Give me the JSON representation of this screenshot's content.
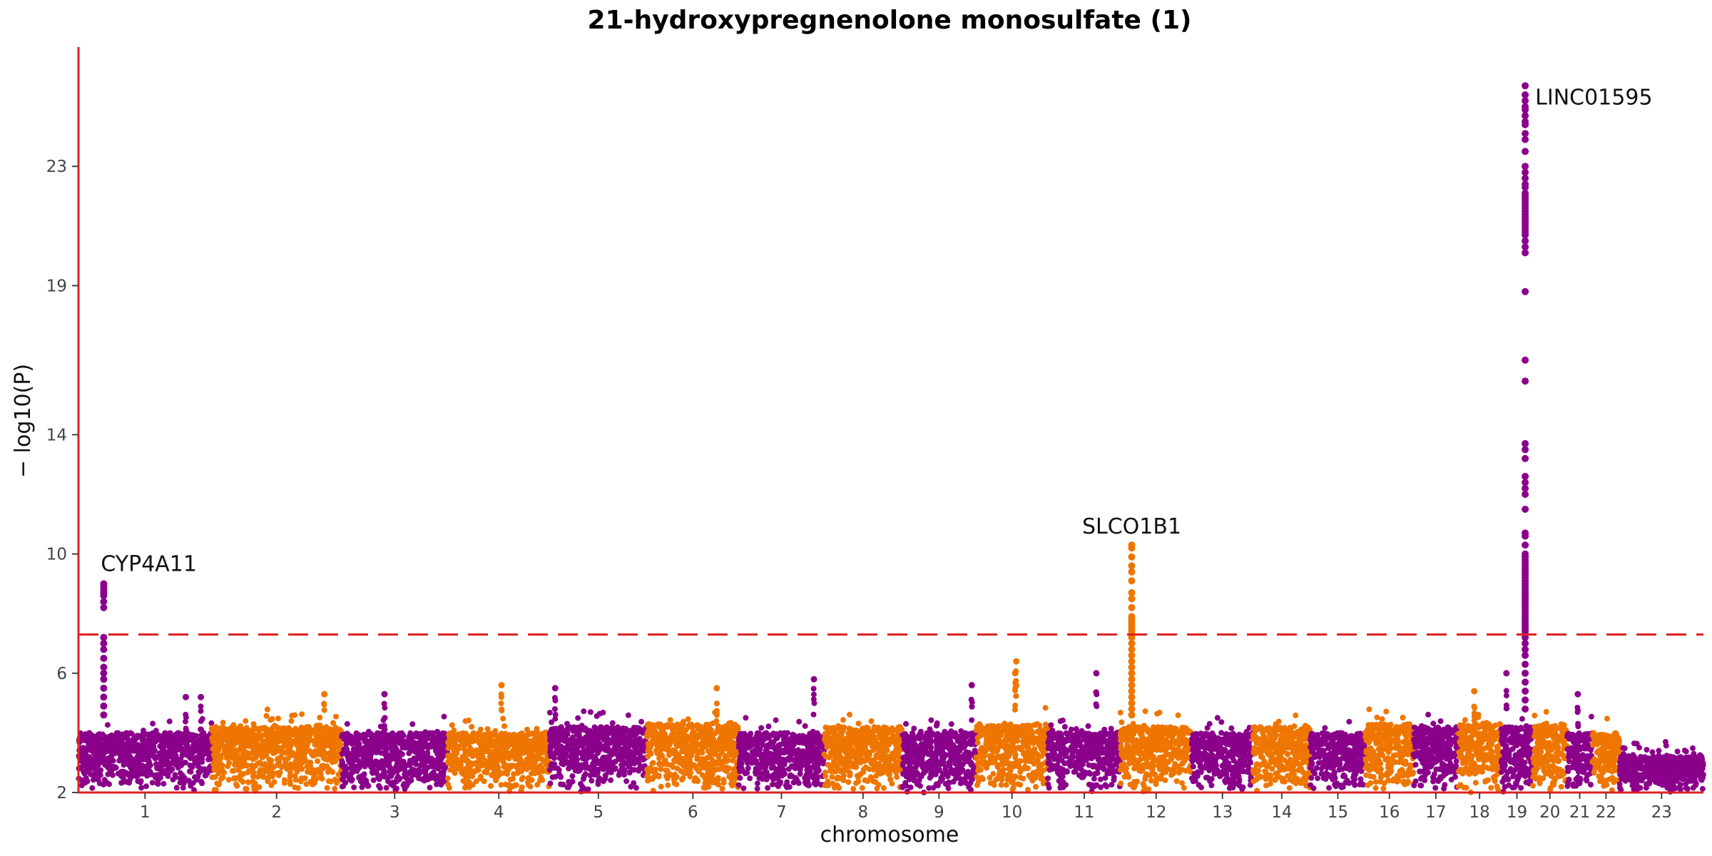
{
  "chart_data": {
    "type": "scatter",
    "title": "21-hydroxypregnenolone monosulfate (1)",
    "xlabel": "chromosome",
    "ylabel": "− log10(P)",
    "ylim": [
      2,
      27
    ],
    "yticks": [
      2,
      6,
      10,
      14,
      19,
      23
    ],
    "significance_threshold": 7.3,
    "grid": false,
    "legend": "none",
    "colors": {
      "odd": "#8B008B",
      "even": "#EE7600",
      "axis": "#DD2222",
      "threshold": "#DD2222"
    },
    "chromosomes": [
      {
        "label": "1",
        "length": 248,
        "baseline": 4.0
      },
      {
        "label": "2",
        "length": 242,
        "baseline": 4.2
      },
      {
        "label": "3",
        "length": 198,
        "baseline": 4.0
      },
      {
        "label": "4",
        "length": 190,
        "baseline": 4.0
      },
      {
        "label": "5",
        "length": 181,
        "baseline": 4.2
      },
      {
        "label": "6",
        "length": 171,
        "baseline": 4.3
      },
      {
        "label": "7",
        "length": 159,
        "baseline": 4.0
      },
      {
        "label": "8",
        "length": 145,
        "baseline": 4.2
      },
      {
        "label": "9",
        "length": 138,
        "baseline": 4.0
      },
      {
        "label": "10",
        "length": 134,
        "baseline": 4.3
      },
      {
        "label": "11",
        "length": 135,
        "baseline": 4.0
      },
      {
        "label": "12",
        "length": 133,
        "baseline": 4.2
      },
      {
        "label": "13",
        "length": 114,
        "baseline": 4.0
      },
      {
        "label": "14",
        "length": 107,
        "baseline": 4.2
      },
      {
        "label": "15",
        "length": 102,
        "baseline": 4.0
      },
      {
        "label": "16",
        "length": 90,
        "baseline": 4.3
      },
      {
        "label": "17",
        "length": 83,
        "baseline": 4.2
      },
      {
        "label": "18",
        "length": 80,
        "baseline": 4.3
      },
      {
        "label": "19",
        "length": 59,
        "baseline": 4.2
      },
      {
        "label": "20",
        "length": 64,
        "baseline": 4.3
      },
      {
        "label": "21",
        "length": 47,
        "baseline": 4.0
      },
      {
        "label": "22",
        "length": 51,
        "baseline": 4.0
      },
      {
        "label": "23",
        "length": 156,
        "baseline": 3.2
      }
    ],
    "peaks": [
      {
        "chromosome": "1",
        "position": 47,
        "top": 9.0,
        "label": "CYP4A11",
        "values": [
          9.0,
          8.9,
          8.8,
          8.7,
          8.6,
          8.4,
          8.2,
          7.2,
          7.0,
          6.8,
          6.5,
          6.2,
          6.0,
          5.8,
          5.5,
          5.2,
          4.9,
          4.6
        ]
      },
      {
        "chromosome": "12",
        "position": 21,
        "top": 10.3,
        "label": "SLCO1B1",
        "values": [
          10.3,
          10.2,
          9.9,
          9.6,
          9.4,
          9.1,
          8.7,
          8.5,
          8.2,
          7.9,
          7.8,
          7.7,
          7.6,
          7.5,
          7.4,
          7.3,
          7.2,
          7.0,
          6.8,
          6.6,
          6.4,
          6.2,
          6.0,
          5.8,
          5.6,
          5.4,
          5.2,
          5.0,
          4.8,
          4.6
        ]
      },
      {
        "chromosome": "19",
        "position": 45,
        "top": 25.7,
        "label": "LINC01595",
        "values": [
          25.7,
          25.4,
          25.2,
          25.0,
          24.9,
          24.7,
          24.5,
          24.4,
          24.1,
          23.9,
          23.5,
          23.0,
          22.8,
          22.6,
          22.4,
          22.3,
          22.1,
          22.0,
          21.9,
          21.8,
          21.7,
          21.6,
          21.5,
          21.4,
          21.3,
          21.2,
          21.1,
          21.0,
          20.9,
          20.8,
          20.7,
          20.5,
          20.3,
          20.1,
          18.8,
          16.5,
          15.8,
          13.7,
          13.5,
          13.2,
          12.6,
          12.4,
          12.2,
          12.0,
          11.5,
          10.7,
          10.6,
          10.3,
          10.0,
          9.9,
          9.8,
          9.7,
          9.6,
          9.5,
          9.4,
          9.3,
          9.2,
          9.1,
          9.0,
          8.9,
          8.8,
          8.7,
          8.6,
          8.5,
          8.4,
          8.3,
          8.2,
          8.1,
          8.0,
          7.9,
          7.8,
          7.7,
          7.6,
          7.5,
          7.4,
          7.3,
          7.2,
          7.0,
          6.8,
          6.6,
          6.3,
          6.0,
          5.7,
          5.4,
          5.1,
          4.8
        ]
      }
    ],
    "secondary_hits": [
      {
        "chromosome": "1",
        "position": 200,
        "value": 5.2
      },
      {
        "chromosome": "1",
        "position": 228,
        "value": 5.2
      },
      {
        "chromosome": "2",
        "position": 210,
        "value": 5.3
      },
      {
        "chromosome": "3",
        "position": 80,
        "value": 5.3
      },
      {
        "chromosome": "4",
        "position": 100,
        "value": 5.6
      },
      {
        "chromosome": "5",
        "position": 10,
        "value": 5.5
      },
      {
        "chromosome": "6",
        "position": 130,
        "value": 5.5
      },
      {
        "chromosome": "7",
        "position": 140,
        "value": 5.8
      },
      {
        "chromosome": "9",
        "position": 130,
        "value": 5.6
      },
      {
        "chromosome": "10",
        "position": 75,
        "value": 6.4
      },
      {
        "chromosome": "10",
        "position": 73,
        "value": 6.0
      },
      {
        "chromosome": "11",
        "position": 90,
        "value": 6.0
      },
      {
        "chromosome": "18",
        "position": 30,
        "value": 5.4
      },
      {
        "chromosome": "19",
        "position": 10,
        "value": 6.0
      },
      {
        "chromosome": "21",
        "position": 20,
        "value": 5.3
      }
    ]
  }
}
